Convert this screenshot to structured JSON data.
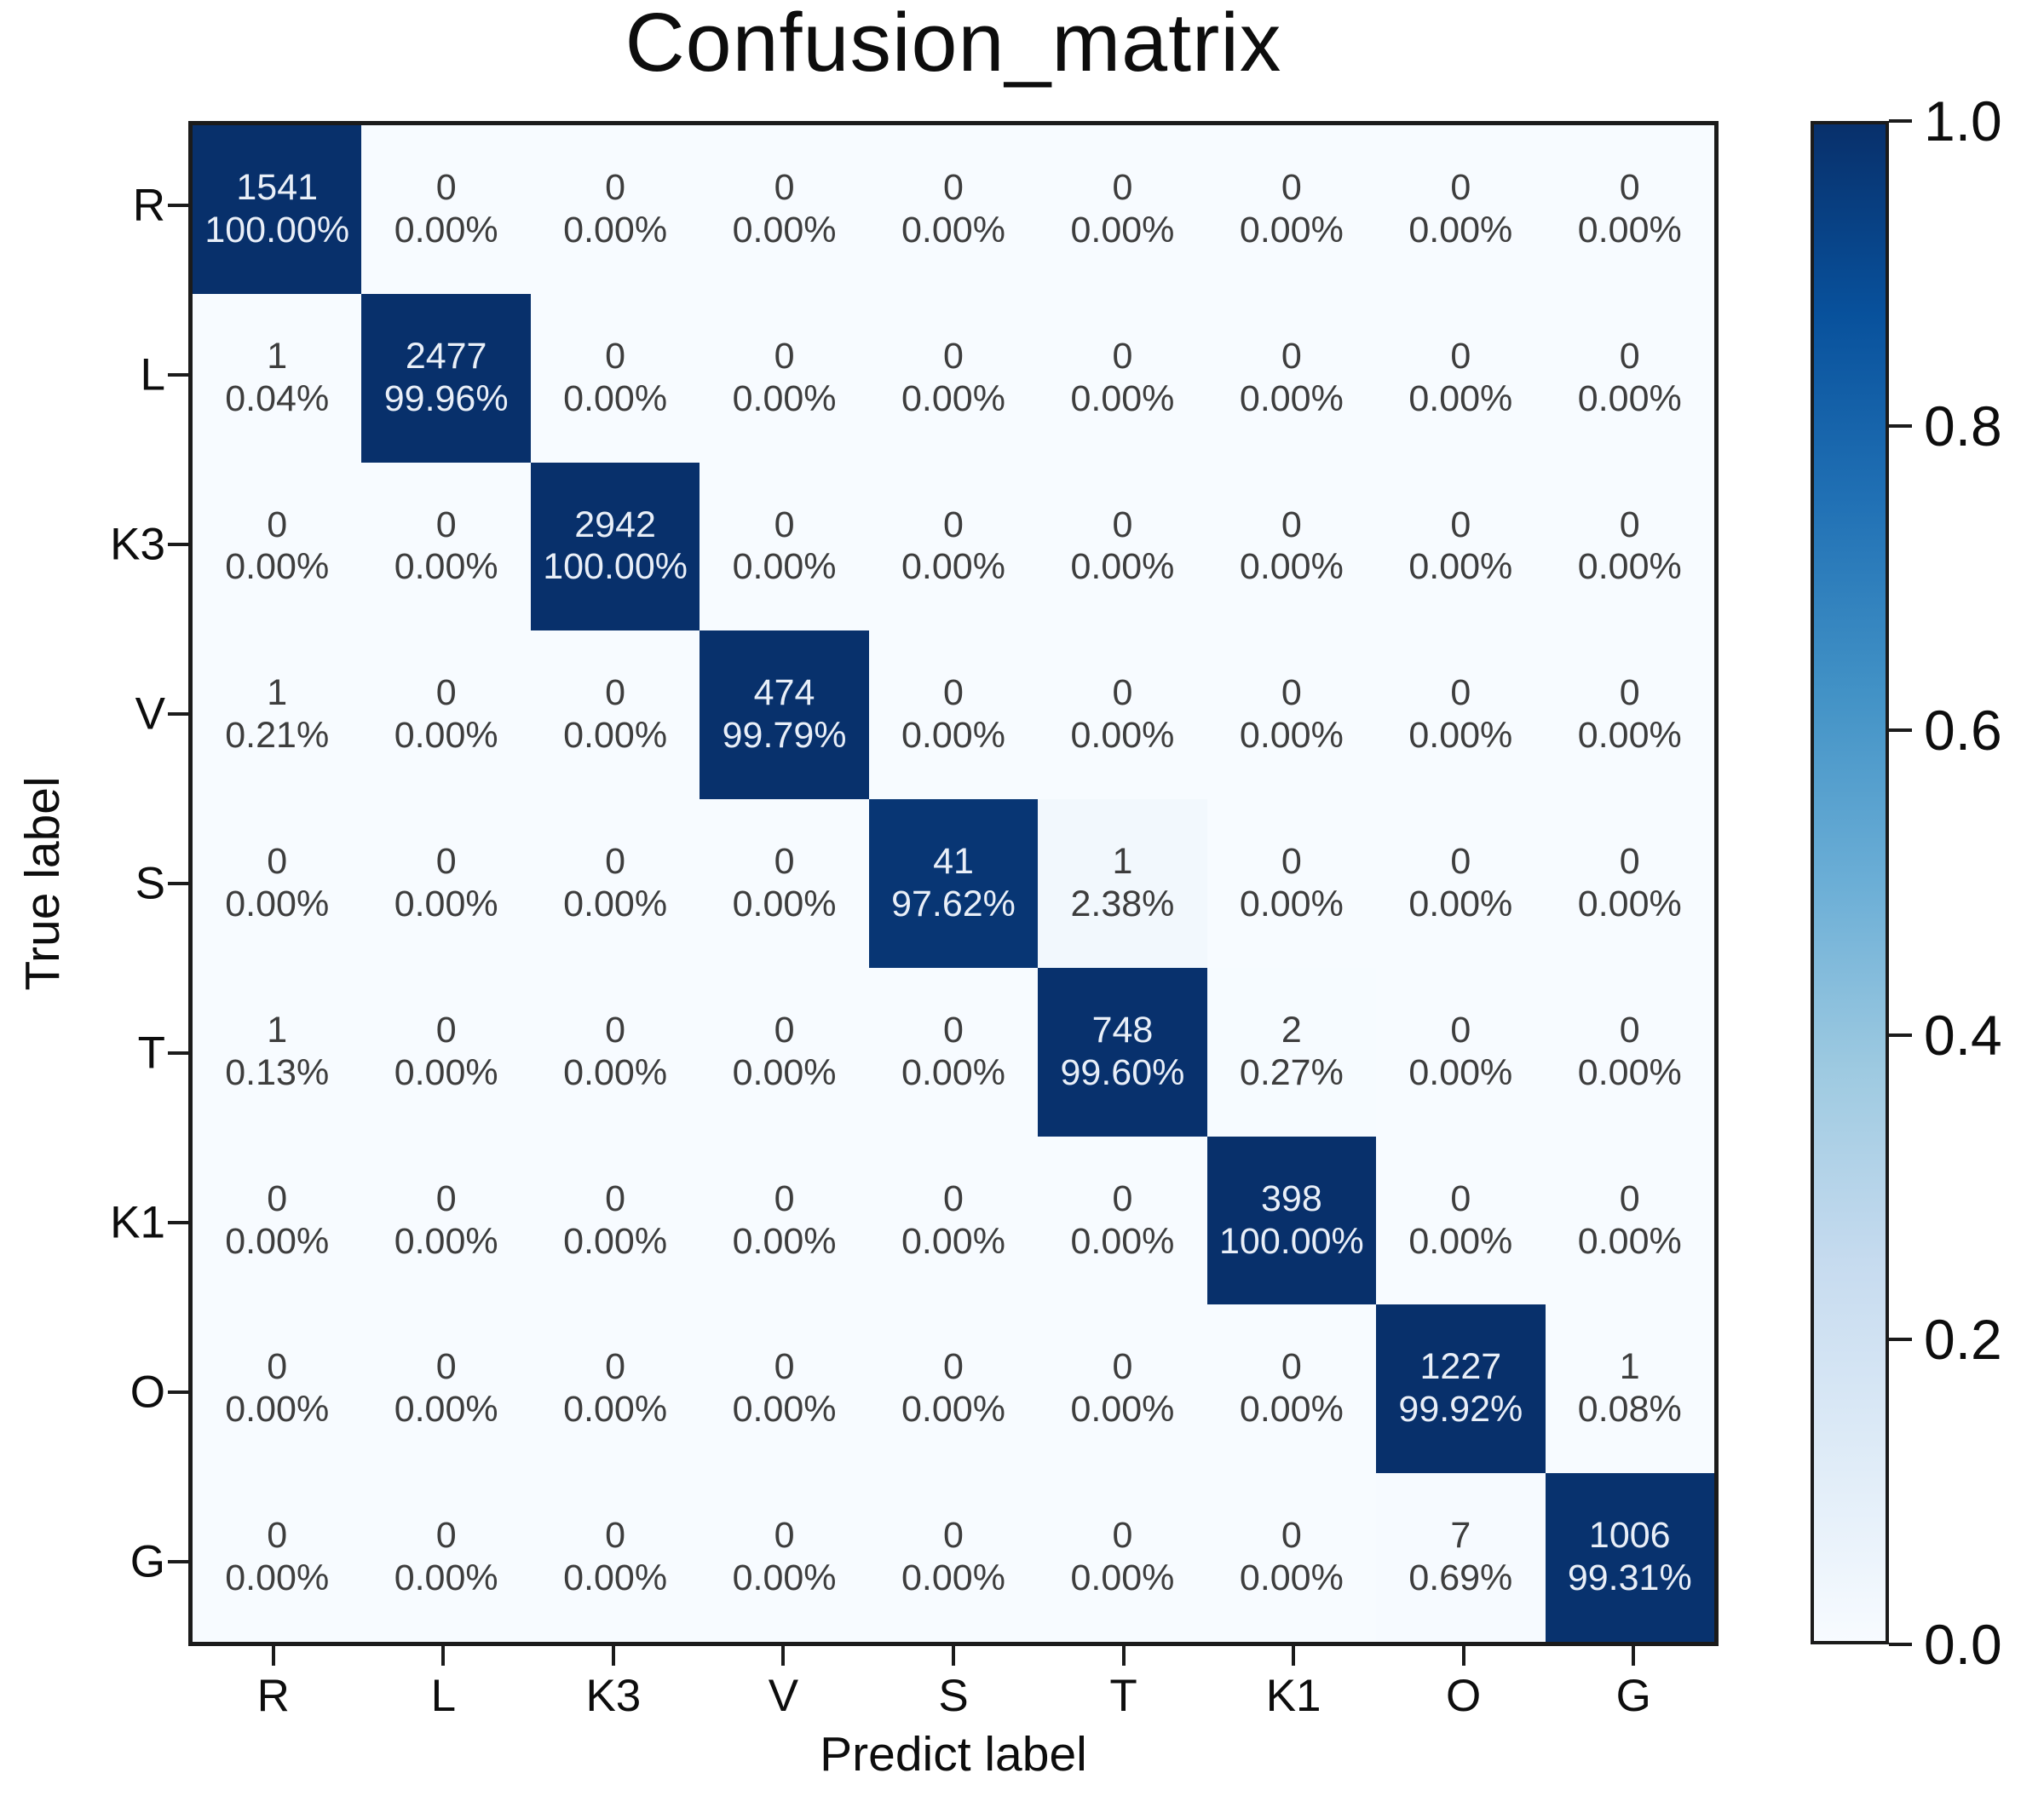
{
  "chart_data": {
    "type": "heatmap",
    "title": "Confusion_matrix",
    "xlabel": "Predict label",
    "ylabel": "True label",
    "x_labels": [
      "R",
      "L",
      "K3",
      "V",
      "S",
      "T",
      "K1",
      "O",
      "G"
    ],
    "y_labels": [
      "R",
      "L",
      "K3",
      "V",
      "S",
      "T",
      "K1",
      "O",
      "G"
    ],
    "cells": {
      "counts": [
        [
          1541,
          0,
          0,
          0,
          0,
          0,
          0,
          0,
          0
        ],
        [
          1,
          2477,
          0,
          0,
          0,
          0,
          0,
          0,
          0
        ],
        [
          0,
          0,
          2942,
          0,
          0,
          0,
          0,
          0,
          0
        ],
        [
          1,
          0,
          0,
          474,
          0,
          0,
          0,
          0,
          0
        ],
        [
          0,
          0,
          0,
          0,
          41,
          1,
          0,
          0,
          0
        ],
        [
          1,
          0,
          0,
          0,
          0,
          748,
          2,
          0,
          0
        ],
        [
          0,
          0,
          0,
          0,
          0,
          0,
          398,
          0,
          0
        ],
        [
          0,
          0,
          0,
          0,
          0,
          0,
          0,
          1227,
          1
        ],
        [
          0,
          0,
          0,
          0,
          0,
          0,
          0,
          7,
          1006
        ]
      ],
      "percent_labels": [
        [
          "100.00%",
          "0.00%",
          "0.00%",
          "0.00%",
          "0.00%",
          "0.00%",
          "0.00%",
          "0.00%",
          "0.00%"
        ],
        [
          "0.04%",
          "99.96%",
          "0.00%",
          "0.00%",
          "0.00%",
          "0.00%",
          "0.00%",
          "0.00%",
          "0.00%"
        ],
        [
          "0.00%",
          "0.00%",
          "100.00%",
          "0.00%",
          "0.00%",
          "0.00%",
          "0.00%",
          "0.00%",
          "0.00%"
        ],
        [
          "0.21%",
          "0.00%",
          "0.00%",
          "99.79%",
          "0.00%",
          "0.00%",
          "0.00%",
          "0.00%",
          "0.00%"
        ],
        [
          "0.00%",
          "0.00%",
          "0.00%",
          "0.00%",
          "97.62%",
          "2.38%",
          "0.00%",
          "0.00%",
          "0.00%"
        ],
        [
          "0.13%",
          "0.00%",
          "0.00%",
          "0.00%",
          "0.00%",
          "99.60%",
          "0.27%",
          "0.00%",
          "0.00%"
        ],
        [
          "0.00%",
          "0.00%",
          "0.00%",
          "0.00%",
          "0.00%",
          "0.00%",
          "100.00%",
          "0.00%",
          "0.00%"
        ],
        [
          "0.00%",
          "0.00%",
          "0.00%",
          "0.00%",
          "0.00%",
          "0.00%",
          "0.00%",
          "99.92%",
          "0.08%"
        ],
        [
          "0.00%",
          "0.00%",
          "0.00%",
          "0.00%",
          "0.00%",
          "0.00%",
          "0.00%",
          "0.69%",
          "99.31%"
        ]
      ]
    },
    "colorbar": {
      "tick_labels": [
        "1.0",
        "0.8",
        "0.6",
        "0.4",
        "0.2",
        "0.0"
      ],
      "min": 0.0,
      "max": 1.0,
      "colormap": "Blues",
      "anchors": [
        [
          0.0,
          "#f7fbff"
        ],
        [
          0.125,
          "#deebf7"
        ],
        [
          0.25,
          "#c6dbef"
        ],
        [
          0.375,
          "#9ecae1"
        ],
        [
          0.5,
          "#6baed6"
        ],
        [
          0.625,
          "#4292c6"
        ],
        [
          0.75,
          "#2171b5"
        ],
        [
          0.875,
          "#08519c"
        ],
        [
          1.0,
          "#08306b"
        ]
      ]
    },
    "text_colors": {
      "on_dark": "#e9eff8",
      "on_light": "#3d3d3d"
    },
    "axis_color": "#1b1b1b",
    "grid": false,
    "legend_position": "right-colorbar"
  }
}
